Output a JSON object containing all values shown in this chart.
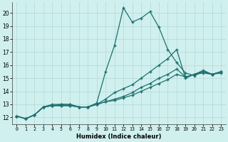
{
  "xlabel": "Humidex (Indice chaleur)",
  "xlim": [
    -0.5,
    23.5
  ],
  "ylim": [
    11.5,
    20.8
  ],
  "xticks": [
    0,
    1,
    2,
    3,
    4,
    5,
    6,
    7,
    8,
    9,
    10,
    11,
    12,
    13,
    14,
    15,
    16,
    17,
    18,
    19,
    20,
    21,
    22,
    23
  ],
  "yticks": [
    12,
    13,
    14,
    15,
    16,
    17,
    18,
    19,
    20
  ],
  "bg_color": "#cff0ee",
  "grid_color": "#b8dbd9",
  "line_color": "#1e7070",
  "lines": [
    {
      "x": [
        0,
        1,
        2,
        3,
        4,
        5,
        6,
        7,
        8,
        9,
        10,
        11,
        12,
        13,
        14,
        15,
        16,
        17,
        18,
        19,
        20,
        21,
        22,
        23
      ],
      "y": [
        12.1,
        11.9,
        12.2,
        12.8,
        12.9,
        13.0,
        13.0,
        12.8,
        12.8,
        13.1,
        15.5,
        17.5,
        20.4,
        19.3,
        19.6,
        20.1,
        18.9,
        17.2,
        16.2,
        15.4,
        15.2,
        15.5,
        15.3,
        15.5
      ]
    },
    {
      "x": [
        0,
        1,
        2,
        3,
        4,
        5,
        6,
        7,
        8,
        9,
        10,
        11,
        12,
        13,
        14,
        15,
        16,
        17,
        18,
        19,
        20,
        21,
        22,
        23
      ],
      "y": [
        12.1,
        11.9,
        12.2,
        12.8,
        13.0,
        13.0,
        13.0,
        12.8,
        12.8,
        13.0,
        13.4,
        13.9,
        14.2,
        14.5,
        15.0,
        15.5,
        16.0,
        16.5,
        17.2,
        15.0,
        15.3,
        15.6,
        15.3,
        15.5
      ]
    },
    {
      "x": [
        0,
        1,
        2,
        3,
        4,
        5,
        6,
        7,
        8,
        9,
        10,
        11,
        12,
        13,
        14,
        15,
        16,
        17,
        18,
        19,
        20,
        21,
        22,
        23
      ],
      "y": [
        12.1,
        11.9,
        12.2,
        12.8,
        12.9,
        12.9,
        12.9,
        12.8,
        12.8,
        13.0,
        13.2,
        13.4,
        13.6,
        13.9,
        14.3,
        14.6,
        15.0,
        15.3,
        15.7,
        15.1,
        15.3,
        15.5,
        15.3,
        15.5
      ]
    },
    {
      "x": [
        0,
        1,
        2,
        3,
        4,
        5,
        6,
        7,
        8,
        9,
        10,
        11,
        12,
        13,
        14,
        15,
        16,
        17,
        18,
        19,
        20,
        21,
        22,
        23
      ],
      "y": [
        12.1,
        11.9,
        12.2,
        12.8,
        12.9,
        12.9,
        12.9,
        12.8,
        12.8,
        13.0,
        13.2,
        13.3,
        13.5,
        13.7,
        14.0,
        14.3,
        14.6,
        14.9,
        15.3,
        15.1,
        15.3,
        15.4,
        15.3,
        15.4
      ]
    }
  ]
}
